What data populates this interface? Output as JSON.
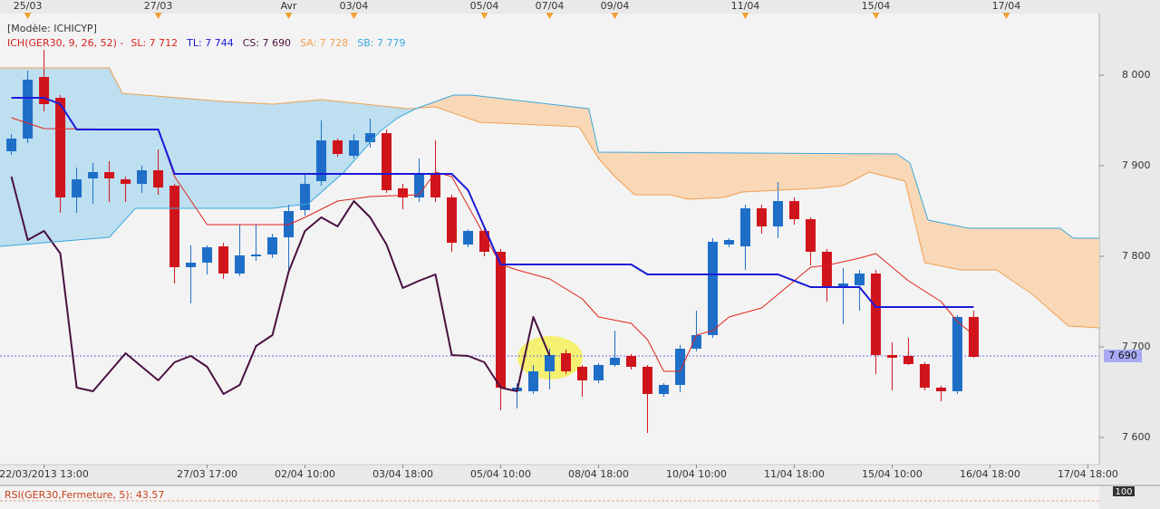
{
  "chart_data": {
    "type": "candlestick",
    "model_label": "[Modèle: ICHICYP]",
    "indicator_label": "ICH(GER30, 9, 26, 52) -",
    "up_color": "#1e6ec8",
    "down_color": "#d0141c",
    "xlim": [
      -0.7,
      66.7
    ],
    "ylim": [
      7570,
      8068
    ],
    "x": [
      0,
      1,
      2,
      3,
      4,
      5,
      6,
      7,
      8,
      9,
      10,
      11,
      12,
      13,
      14,
      15,
      16,
      17,
      18,
      19,
      20,
      21,
      22,
      23,
      24,
      25,
      26,
      27,
      28,
      29,
      30,
      31,
      32,
      33,
      34,
      35,
      36,
      37,
      38,
      39,
      40,
      41,
      42,
      43,
      44,
      45,
      46,
      47,
      48,
      49,
      50,
      51,
      52,
      53,
      54,
      55,
      56,
      57,
      58,
      59
    ],
    "open": [
      7916,
      7930,
      7998,
      7975,
      7865,
      7886,
      7893,
      7885,
      7880,
      7895,
      7878,
      7788,
      7793,
      7811,
      7781,
      7800,
      7802,
      7821,
      7851,
      7883,
      7928,
      7911,
      7926,
      7936,
      7875,
      7865,
      7890,
      7865,
      7813,
      7828,
      7805,
      7651,
      7651,
      7673,
      7693,
      7678,
      7663,
      7680,
      7690,
      7678,
      7648,
      7658,
      7698,
      7713,
      7813,
      7811,
      7853,
      7833,
      7861,
      7841,
      7805,
      7765,
      7768,
      7781,
      7691,
      7690,
      7681,
      7655,
      7651,
      7733
    ],
    "high": [
      7935,
      8005,
      8028,
      7978,
      7898,
      7903,
      7905,
      7888,
      7900,
      7918,
      7880,
      7812,
      7812,
      7815,
      7835,
      7835,
      7825,
      7857,
      7890,
      7950,
      7930,
      7935,
      7952,
      7940,
      7880,
      7908,
      7928,
      7868,
      7830,
      7830,
      7808,
      7660,
      7680,
      7698,
      7697,
      7680,
      7682,
      7718,
      7692,
      7680,
      7660,
      7702,
      7740,
      7820,
      7820,
      7857,
      7857,
      7882,
      7865,
      7843,
      7808,
      7787,
      7785,
      7785,
      7705,
      7710,
      7683,
      7657,
      7735,
      7740
    ],
    "low": [
      7912,
      7925,
      7960,
      7848,
      7848,
      7858,
      7860,
      7860,
      7870,
      7868,
      7770,
      7748,
      7780,
      7775,
      7778,
      7795,
      7798,
      7781,
      7845,
      7878,
      7910,
      7908,
      7920,
      7870,
      7852,
      7860,
      7860,
      7805,
      7810,
      7800,
      7630,
      7632,
      7648,
      7653,
      7670,
      7645,
      7660,
      7678,
      7675,
      7605,
      7645,
      7650,
      7695,
      7710,
      7810,
      7785,
      7825,
      7820,
      7835,
      7790,
      7750,
      7725,
      7740,
      7670,
      7652,
      7680,
      7652,
      7640,
      7648,
      7688
    ],
    "close": [
      7930,
      7995,
      7968,
      7865,
      7885,
      7893,
      7886,
      7880,
      7895,
      7876,
      7788,
      7793,
      7810,
      7781,
      7801,
      7802,
      7821,
      7850,
      7880,
      7928,
      7913,
      7928,
      7936,
      7873,
      7865,
      7890,
      7865,
      7815,
      7828,
      7805,
      7655,
      7655,
      7673,
      7691,
      7673,
      7663,
      7680,
      7688,
      7678,
      7648,
      7658,
      7698,
      7713,
      7816,
      7818,
      7853,
      7833,
      7861,
      7841,
      7805,
      7765,
      7770,
      7781,
      7691,
      7688,
      7681,
      7655,
      7651,
      7733,
      7689
    ],
    "series": [
      {
        "name": "SL: 7 712",
        "color": "#e0231c",
        "width": 1,
        "x": [
          0,
          2,
          9,
          10,
          12,
          17,
          18,
          20,
          22,
          25,
          26,
          27,
          29,
          30,
          31,
          33,
          35,
          36,
          38,
          39,
          40,
          41,
          42,
          43,
          44,
          45,
          46,
          47,
          48,
          49,
          50,
          52,
          53,
          54,
          55,
          57,
          58,
          59
        ],
        "values": [
          7953,
          7941,
          7940,
          7888,
          7835,
          7835,
          7843,
          7861,
          7866,
          7868,
          7893,
          7888,
          7823,
          7791,
          7785,
          7775,
          7753,
          7733,
          7726,
          7708,
          7673,
          7673,
          7713,
          7718,
          7733,
          7738,
          7743,
          7758,
          7773,
          7788,
          7790,
          7798,
          7803,
          7788,
          7773,
          7750,
          7728,
          7713
        ]
      },
      {
        "name": "TL: 7 744",
        "color": "#1a1ad8",
        "width": 2,
        "x": [
          0,
          2,
          3,
          4,
          9,
          10,
          27,
          28,
          30,
          38,
          39,
          47,
          49,
          52,
          53,
          59
        ],
        "values": [
          7975,
          7975,
          7968,
          7940,
          7940,
          7891,
          7891,
          7873,
          7791,
          7791,
          7780,
          7780,
          7766,
          7766,
          7744,
          7744
        ]
      },
      {
        "name": "CS: 7 690",
        "color": "#4a1040",
        "width": 2,
        "x": [
          0,
          1,
          2,
          3,
          4,
          5,
          7,
          9,
          10,
          11,
          12,
          13,
          14,
          15,
          16,
          17,
          18,
          19,
          20,
          21,
          22,
          23,
          24,
          25,
          26,
          27,
          28,
          29,
          30,
          31,
          32,
          33
        ],
        "values": [
          7888,
          7818,
          7828,
          7803,
          7655,
          7651,
          7693,
          7663,
          7683,
          7690,
          7678,
          7648,
          7658,
          7701,
          7713,
          7783,
          7828,
          7843,
          7833,
          7861,
          7843,
          7813,
          7765,
          7773,
          7780,
          7691,
          7690,
          7683,
          7655,
          7651,
          7733,
          7690
        ]
      },
      {
        "name": "SA: 7 728",
        "color": "#f0a050",
        "width": 1,
        "x": [
          -0.7,
          6,
          6.8,
          13,
          16,
          19,
          24.3,
          26,
          28.7,
          34.8,
          36,
          37,
          38.2,
          40.4,
          41.5,
          43.7,
          44.8,
          49.3,
          51,
          52.6,
          54.8,
          56,
          58.2,
          60.4,
          62.6,
          64.8,
          66.7
        ],
        "values": [
          8008,
          8008,
          7980,
          7971,
          7968,
          7973,
          7963,
          7965,
          7948,
          7943,
          7908,
          7888,
          7868,
          7868,
          7863,
          7865,
          7871,
          7875,
          7878,
          7893,
          7883,
          7793,
          7785,
          7785,
          7758,
          7723,
          7721
        ]
      },
      {
        "name": "SB: 7 779",
        "color": "#3aa8dc",
        "width": 1,
        "x": [
          -0.7,
          6,
          7.6,
          16,
          18.2,
          20.4,
          22.6,
          23.7,
          24.8,
          27.1,
          28.2,
          35.4,
          36,
          54.3,
          55.1,
          56.2,
          58.7,
          64.3,
          65.1,
          66.7
        ],
        "values": [
          7811,
          7821,
          7853,
          7853,
          7858,
          7893,
          7938,
          7953,
          7963,
          7978,
          7978,
          7963,
          7915,
          7913,
          7903,
          7840,
          7831,
          7831,
          7820,
          7820
        ]
      }
    ],
    "cloud_colors": [
      "#bddff0",
      "#f9d8b8"
    ],
    "xticks": [
      {
        "value": 2,
        "label": "22/03/2013 13:00"
      },
      {
        "value": 12,
        "label": "27/03 17:00"
      },
      {
        "value": 18,
        "label": "02/04 10:00"
      },
      {
        "value": 24,
        "label": "03/04 18:00"
      },
      {
        "value": 30,
        "label": "05/04 10:00"
      },
      {
        "value": 36,
        "label": "08/04 18:00"
      },
      {
        "value": 42,
        "label": "10/04 10:00"
      },
      {
        "value": 48,
        "label": "11/04 18:00"
      },
      {
        "value": 54,
        "label": "15/04 10:00"
      },
      {
        "value": 60,
        "label": "16/04 18:00"
      },
      {
        "value": 66,
        "label": "17/04 18:00"
      }
    ],
    "top_ticks": [
      {
        "value": 1,
        "label": "25/03"
      },
      {
        "value": 9,
        "label": "27/03"
      },
      {
        "value": 17,
        "label": "Avr"
      },
      {
        "value": 21,
        "label": "03/04"
      },
      {
        "value": 29,
        "label": "05/04"
      },
      {
        "value": 33,
        "label": "07/04"
      },
      {
        "value": 37,
        "label": "09/04"
      },
      {
        "value": 45,
        "label": "11/04"
      },
      {
        "value": 53,
        "label": "15/04"
      },
      {
        "value": 61,
        "label": "17/04"
      }
    ],
    "yticks": [
      {
        "value": 7600,
        "label": "7 600"
      },
      {
        "value": 7700,
        "label": "7 700"
      },
      {
        "value": 7800,
        "label": "7 800"
      },
      {
        "value": 7900,
        "label": "7 900"
      },
      {
        "value": 8000,
        "label": "8 000"
      }
    ],
    "last_price": {
      "value": 7690,
      "label": "7 690",
      "color": "#6c6ce8"
    },
    "rsi": {
      "title": "RSI(GER30,Fermeture, 5): 43.57",
      "yticks": [
        100
      ]
    }
  }
}
